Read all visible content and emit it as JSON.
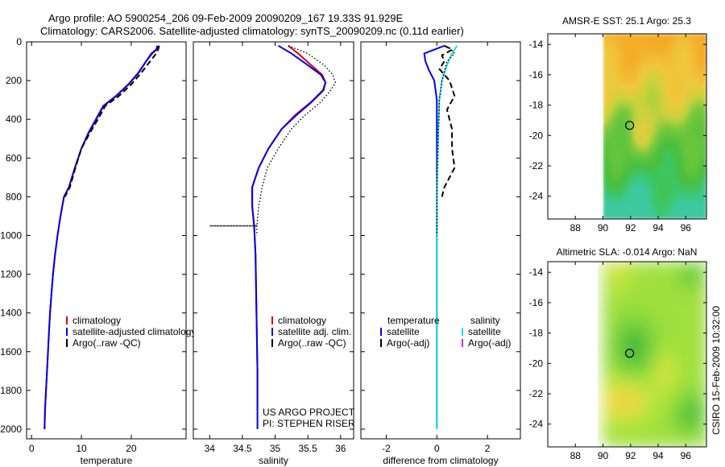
{
  "title": {
    "line1": "Argo profile: AO 5900254_206 09-Feb-2009 20090209_167 19.33S 91.929E",
    "line2": "Climatology: CARS2006. Satellite-adjusted climatology: synTS_20090209.nc (0.11d earlier)"
  },
  "colors": {
    "climatology": "#dd0000",
    "satellite": "#0000ee",
    "argo": "#000000",
    "satellite_salinity": "#22dddd",
    "argo_adj_salinity": "#dd22dd"
  },
  "chart_data": [
    {
      "type": "line",
      "id": "temperature",
      "xlabel": "temperature",
      "xlim": [
        -1,
        31
      ],
      "ylim": [
        2050,
        0
      ],
      "xticks": [
        0,
        10,
        20
      ],
      "yticks": [
        0,
        200,
        400,
        600,
        800,
        1000,
        1200,
        1400,
        1600,
        1800,
        2000
      ],
      "legend": [
        "climatology",
        "satellite-adjusted climatology",
        "Argo(..raw -QC)"
      ],
      "series": [
        {
          "name": "climatology",
          "style": "solid",
          "color": "red",
          "points": [
            [
              25.2,
              20
            ],
            [
              25,
              40
            ],
            [
              24,
              60
            ],
            [
              23,
              100
            ],
            [
              21.5,
              160
            ],
            [
              19.5,
              220
            ],
            [
              17,
              280
            ],
            [
              14.5,
              330
            ],
            [
              13,
              400
            ],
            [
              11.5,
              470
            ],
            [
              10,
              550
            ],
            [
              8.7,
              650
            ],
            [
              7.5,
              750
            ],
            [
              6.5,
              800
            ],
            [
              5.8,
              900
            ],
            [
              5.2,
              1000
            ],
            [
              4.7,
              1100
            ],
            [
              4.3,
              1200
            ],
            [
              4,
              1300
            ],
            [
              3.7,
              1400
            ],
            [
              3.5,
              1500
            ],
            [
              3.3,
              1600
            ],
            [
              3.1,
              1700
            ],
            [
              2.9,
              1800
            ],
            [
              2.7,
              1900
            ],
            [
              2.6,
              2000
            ]
          ]
        },
        {
          "name": "satellite-adjusted climatology",
          "style": "solid",
          "color": "blue",
          "points": [
            [
              25.3,
              20
            ],
            [
              25.1,
              40
            ],
            [
              24.2,
              60
            ],
            [
              23,
              100
            ],
            [
              21.4,
              160
            ],
            [
              19.4,
              220
            ],
            [
              16.9,
              280
            ],
            [
              14.4,
              330
            ],
            [
              12.9,
              400
            ],
            [
              11.4,
              470
            ],
            [
              10,
              550
            ],
            [
              8.7,
              650
            ],
            [
              7.5,
              750
            ],
            [
              6.5,
              800
            ],
            [
              5.8,
              900
            ],
            [
              5.2,
              1000
            ],
            [
              4.7,
              1100
            ],
            [
              4.3,
              1200
            ],
            [
              4,
              1300
            ],
            [
              3.7,
              1400
            ],
            [
              3.5,
              1500
            ],
            [
              3.3,
              1600
            ],
            [
              3.1,
              1700
            ],
            [
              2.9,
              1800
            ],
            [
              2.7,
              1900
            ],
            [
              2.6,
              2000
            ]
          ]
        },
        {
          "name": "Argo(..raw -QC)",
          "style": "dashed",
          "color": "black",
          "points": [
            [
              25.6,
              20
            ],
            [
              25.4,
              40
            ],
            [
              25,
              60
            ],
            [
              23.8,
              100
            ],
            [
              22,
              160
            ],
            [
              20,
              220
            ],
            [
              17.5,
              280
            ],
            [
              14.8,
              330
            ],
            [
              13.3,
              400
            ],
            [
              11.7,
              470
            ],
            [
              10,
              550
            ],
            [
              8.8,
              650
            ],
            [
              7.7,
              750
            ],
            [
              6.7,
              800
            ]
          ]
        }
      ]
    },
    {
      "type": "line",
      "id": "salinity",
      "xlabel": "salinity",
      "xlim": [
        33.75,
        36.2
      ],
      "ylim": [
        2050,
        0
      ],
      "xticks": [
        34,
        34.5,
        35,
        35.5,
        36
      ],
      "xticklabels": [
        "34",
        "34.5",
        "35",
        "35.5",
        "36"
      ],
      "legend": [
        "climatology",
        "satellite adj. clim.",
        "Argo(..raw -QC)"
      ],
      "annotation": [
        "US ARGO PROJECT",
        "PI: STEPHEN RISER"
      ],
      "series": [
        {
          "name": "climatology",
          "style": "solid",
          "color": "red",
          "points": [
            [
              35.2,
              20
            ],
            [
              35.35,
              60
            ],
            [
              35.55,
              120
            ],
            [
              35.72,
              170
            ],
            [
              35.77,
              210
            ],
            [
              35.73,
              250
            ],
            [
              35.55,
              310
            ],
            [
              35.3,
              380
            ],
            [
              35.1,
              450
            ],
            [
              34.9,
              550
            ],
            [
              34.75,
              650
            ],
            [
              34.65,
              750
            ],
            [
              34.65,
              850
            ],
            [
              34.68,
              950
            ],
            [
              34.7,
              1100
            ],
            [
              34.71,
              1300
            ],
            [
              34.72,
              1500
            ],
            [
              34.73,
              1700
            ],
            [
              34.73,
              1900
            ]
          ]
        },
        {
          "name": "satellite adj. clim.",
          "style": "solid",
          "color": "blue",
          "points": [
            [
              35.05,
              20
            ],
            [
              35.25,
              60
            ],
            [
              35.5,
              120
            ],
            [
              35.7,
              170
            ],
            [
              35.77,
              210
            ],
            [
              35.74,
              250
            ],
            [
              35.56,
              310
            ],
            [
              35.32,
              380
            ],
            [
              35.1,
              450
            ],
            [
              34.9,
              550
            ],
            [
              34.75,
              650
            ],
            [
              34.65,
              750
            ],
            [
              34.65,
              850
            ],
            [
              34.68,
              950
            ],
            [
              34.7,
              1100
            ],
            [
              34.71,
              1300
            ],
            [
              34.72,
              1500
            ],
            [
              34.73,
              1700
            ],
            [
              34.73,
              1900
            ],
            [
              34.73,
              2000
            ]
          ]
        },
        {
          "name": "Argo(..raw -QC)",
          "style": "dotted",
          "color": "black",
          "points": [
            [
              35.2,
              20
            ],
            [
              35.5,
              60
            ],
            [
              35.75,
              120
            ],
            [
              35.88,
              170
            ],
            [
              35.92,
              210
            ],
            [
              35.85,
              250
            ],
            [
              35.7,
              310
            ],
            [
              35.45,
              380
            ],
            [
              35.25,
              450
            ],
            [
              35.05,
              550
            ],
            [
              34.88,
              650
            ],
            [
              34.8,
              750
            ],
            [
              34.75,
              850
            ],
            [
              34.72,
              950
            ],
            [
              34,
              950
            ],
            [
              34.72,
              950
            ],
            [
              34.72,
              1000
            ]
          ]
        }
      ]
    },
    {
      "type": "line",
      "id": "difference",
      "xlabel": "difference from climatology",
      "xlim": [
        -3,
        3.3
      ],
      "ylim": [
        2050,
        0
      ],
      "xticks": [
        -2,
        0,
        2
      ],
      "legend_groups": [
        {
          "header": "temperature",
          "items": [
            "satellite",
            "Argo(-adj)"
          ]
        },
        {
          "header": "salinity",
          "items": [
            "satellite",
            "Argo(-adj)"
          ]
        }
      ],
      "series": [
        {
          "name": "temperature satellite",
          "style": "solid",
          "color": "blue",
          "points": [
            [
              0.3,
              20
            ],
            [
              -0.5,
              60
            ],
            [
              -0.45,
              100
            ],
            [
              -0.3,
              150
            ],
            [
              -0.1,
              200
            ],
            [
              0,
              300
            ],
            [
              0,
              500
            ],
            [
              0,
              800
            ],
            [
              0,
              1200
            ],
            [
              0,
              1600
            ],
            [
              0,
              2000
            ]
          ]
        },
        {
          "name": "temperature Argo(-adj)",
          "style": "dashed",
          "color": "black",
          "points": [
            [
              0.3,
              20
            ],
            [
              0.6,
              40
            ],
            [
              0.2,
              70
            ],
            [
              0.3,
              100
            ],
            [
              0.1,
              140
            ],
            [
              0.5,
              200
            ],
            [
              0.7,
              280
            ],
            [
              0.4,
              350
            ],
            [
              0.6,
              450
            ],
            [
              0.6,
              550
            ],
            [
              0.7,
              650
            ],
            [
              0.3,
              750
            ],
            [
              0.2,
              800
            ]
          ]
        },
        {
          "name": "salinity satellite",
          "style": "solid",
          "color": "cyan",
          "points": [
            [
              0.8,
              20
            ],
            [
              0.6,
              60
            ],
            [
              0.4,
              120
            ],
            [
              0.2,
              200
            ],
            [
              0.1,
              300
            ],
            [
              0.05,
              500
            ],
            [
              0,
              800
            ],
            [
              0,
              1200
            ],
            [
              0,
              1600
            ],
            [
              0,
              2000
            ]
          ]
        },
        {
          "name": "salinity Argo(-adj)",
          "style": "dotted",
          "color": "black",
          "points": [
            [
              0.5,
              30
            ],
            [
              0.7,
              60
            ],
            [
              0.4,
              100
            ],
            [
              0.2,
              200
            ],
            [
              0.1,
              300
            ],
            [
              0.05,
              500
            ],
            [
              0,
              800
            ],
            [
              0,
              1000
            ]
          ]
        }
      ]
    },
    {
      "type": "heatmap",
      "id": "sst-map",
      "title": "AMSR-E SST: 25.1 Argo: 25.3",
      "xlim": [
        86,
        97.5
      ],
      "ylim": [
        -25.5,
        -13.3
      ],
      "xticks": [
        88,
        90,
        92,
        94,
        96
      ],
      "yticks": [
        -14,
        -16,
        -18,
        -20,
        -22,
        -24
      ],
      "marker": [
        91.93,
        -19.33
      ]
    },
    {
      "type": "heatmap",
      "id": "sla-map",
      "title": "Altimetric SLA: -0.014 Argo: NaN",
      "xlim": [
        86,
        97.5
      ],
      "ylim": [
        -25.5,
        -13.3
      ],
      "xticks": [
        88,
        90,
        92,
        94,
        96
      ],
      "yticks": [
        -14,
        -16,
        -18,
        -20,
        -22,
        -24
      ],
      "marker": [
        91.93,
        -19.33
      ]
    }
  ],
  "side_label": "CSIRO 15-Feb-2009 10:32:00"
}
